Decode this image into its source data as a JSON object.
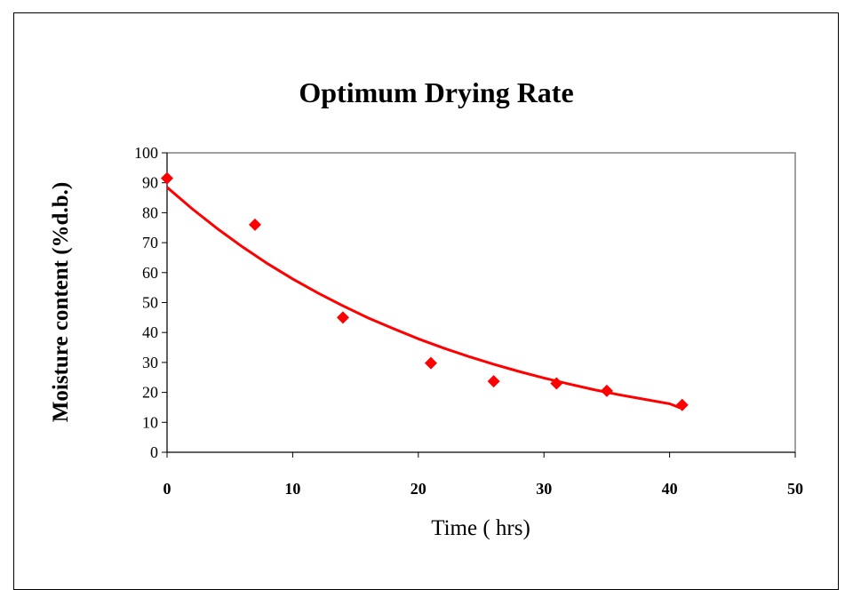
{
  "chart_data": {
    "type": "scatter",
    "title": "Optimum Drying Rate",
    "xlabel": "Time ( hrs)",
    "ylabel": "Moisture content (%d.b.)",
    "xlim": [
      0,
      50
    ],
    "ylim": [
      0,
      100
    ],
    "xticks": [
      "0",
      "10",
      "20",
      "30",
      "40",
      "50"
    ],
    "yticks": [
      "0",
      "10",
      "20",
      "30",
      "40",
      "50",
      "60",
      "70",
      "80",
      "90",
      "100"
    ],
    "grid": false,
    "legend": "none",
    "colors": {
      "series": "#ff0000",
      "plot_border": "#808080"
    },
    "series": [
      {
        "marker": "diamond",
        "x": [
          0,
          7,
          14,
          21,
          26,
          31,
          35,
          41
        ],
        "y": [
          91.5,
          76,
          45,
          29.8,
          23.7,
          23,
          20.5,
          15.8
        ]
      }
    ],
    "trendline": {
      "type": "exponential",
      "x": [
        0,
        2,
        4,
        6,
        8,
        10,
        12,
        14,
        16,
        18,
        20,
        22,
        24,
        26,
        28,
        30,
        32,
        34,
        36,
        38,
        40,
        41
      ],
      "y": [
        88.5,
        81.3,
        74.7,
        68.6,
        63.0,
        57.9,
        53.2,
        48.9,
        44.9,
        41.3,
        37.9,
        34.8,
        32.0,
        29.4,
        27.0,
        24.8,
        22.8,
        20.9,
        19.2,
        17.7,
        16.2,
        14.6
      ]
    }
  }
}
